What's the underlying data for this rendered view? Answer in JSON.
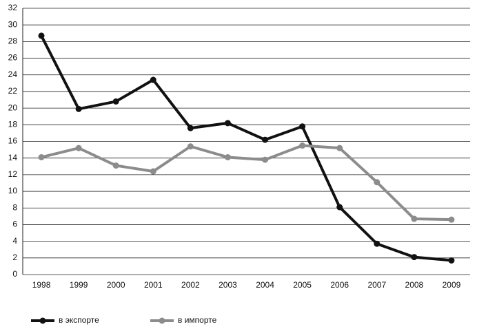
{
  "chart_data": {
    "type": "line",
    "categories": [
      "1998",
      "1999",
      "2000",
      "2001",
      "2002",
      "2003",
      "2004",
      "2005",
      "2006",
      "2007",
      "2008",
      "2009"
    ],
    "series": [
      {
        "name": "в экспорте",
        "color": "#111111",
        "values": [
          28.7,
          19.9,
          20.8,
          23.4,
          17.6,
          18.2,
          16.2,
          17.8,
          8.1,
          3.7,
          2.1,
          1.7
        ]
      },
      {
        "name": "в импорте",
        "color": "#8c8c8c",
        "values": [
          14.1,
          15.2,
          13.1,
          12.4,
          15.4,
          14.1,
          13.8,
          15.5,
          15.2,
          11.1,
          6.7,
          6.6
        ]
      }
    ],
    "ylim": [
      0,
      32
    ],
    "yticks": [
      0,
      2,
      4,
      6,
      8,
      10,
      12,
      14,
      16,
      18,
      20,
      22,
      24,
      26,
      28,
      30,
      32
    ],
    "grid": true
  }
}
